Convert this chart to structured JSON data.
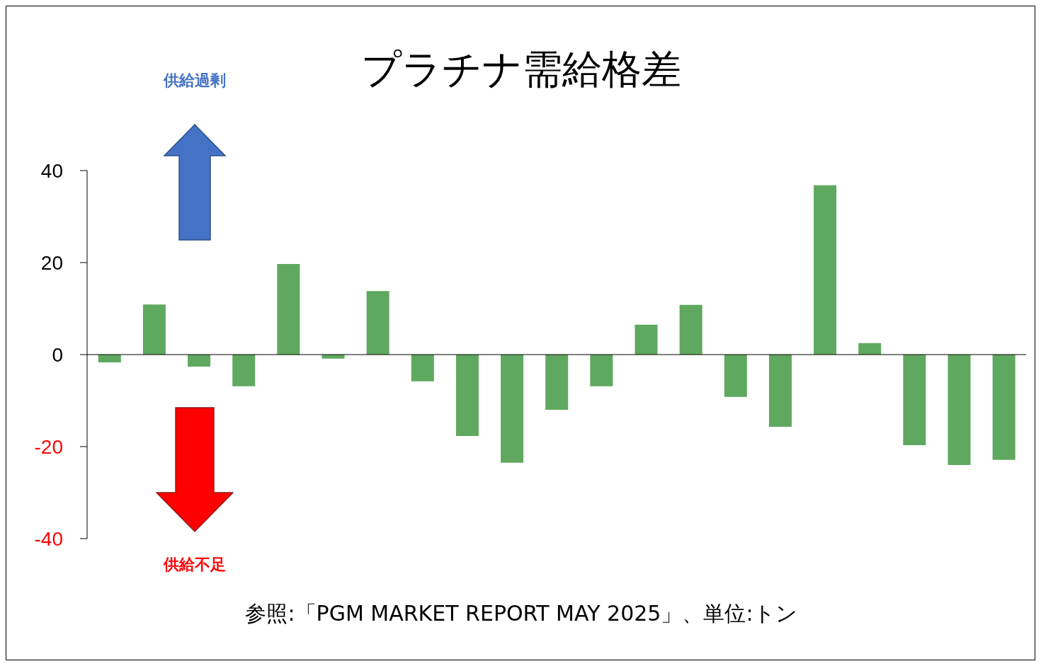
{
  "chart_data": {
    "type": "bar",
    "title": "プラチナ需給格差",
    "categories": [
      null,
      null,
      null,
      null,
      null,
      null,
      null,
      null,
      null,
      null,
      null,
      null,
      null,
      null,
      null,
      null,
      null,
      null,
      null,
      null,
      null
    ],
    "values": [
      -1.7,
      10.9,
      -2.6,
      -6.9,
      19.7,
      -0.9,
      13.8,
      -5.8,
      -17.7,
      -23.5,
      -12,
      -6.9,
      6.5,
      10.8,
      -9.2,
      -15.7,
      36.8,
      2.5,
      -19.7,
      -24,
      -22.9
    ],
    "color": "#5fa85f",
    "ylim": [
      -40,
      40
    ],
    "yticks": [
      -40,
      -20,
      0,
      20,
      40
    ],
    "annotations": [
      "供給過剰",
      "供給不足",
      "参照:「PGM MARKET REPORT MAY 2025」、単位:トン"
    ]
  }
}
